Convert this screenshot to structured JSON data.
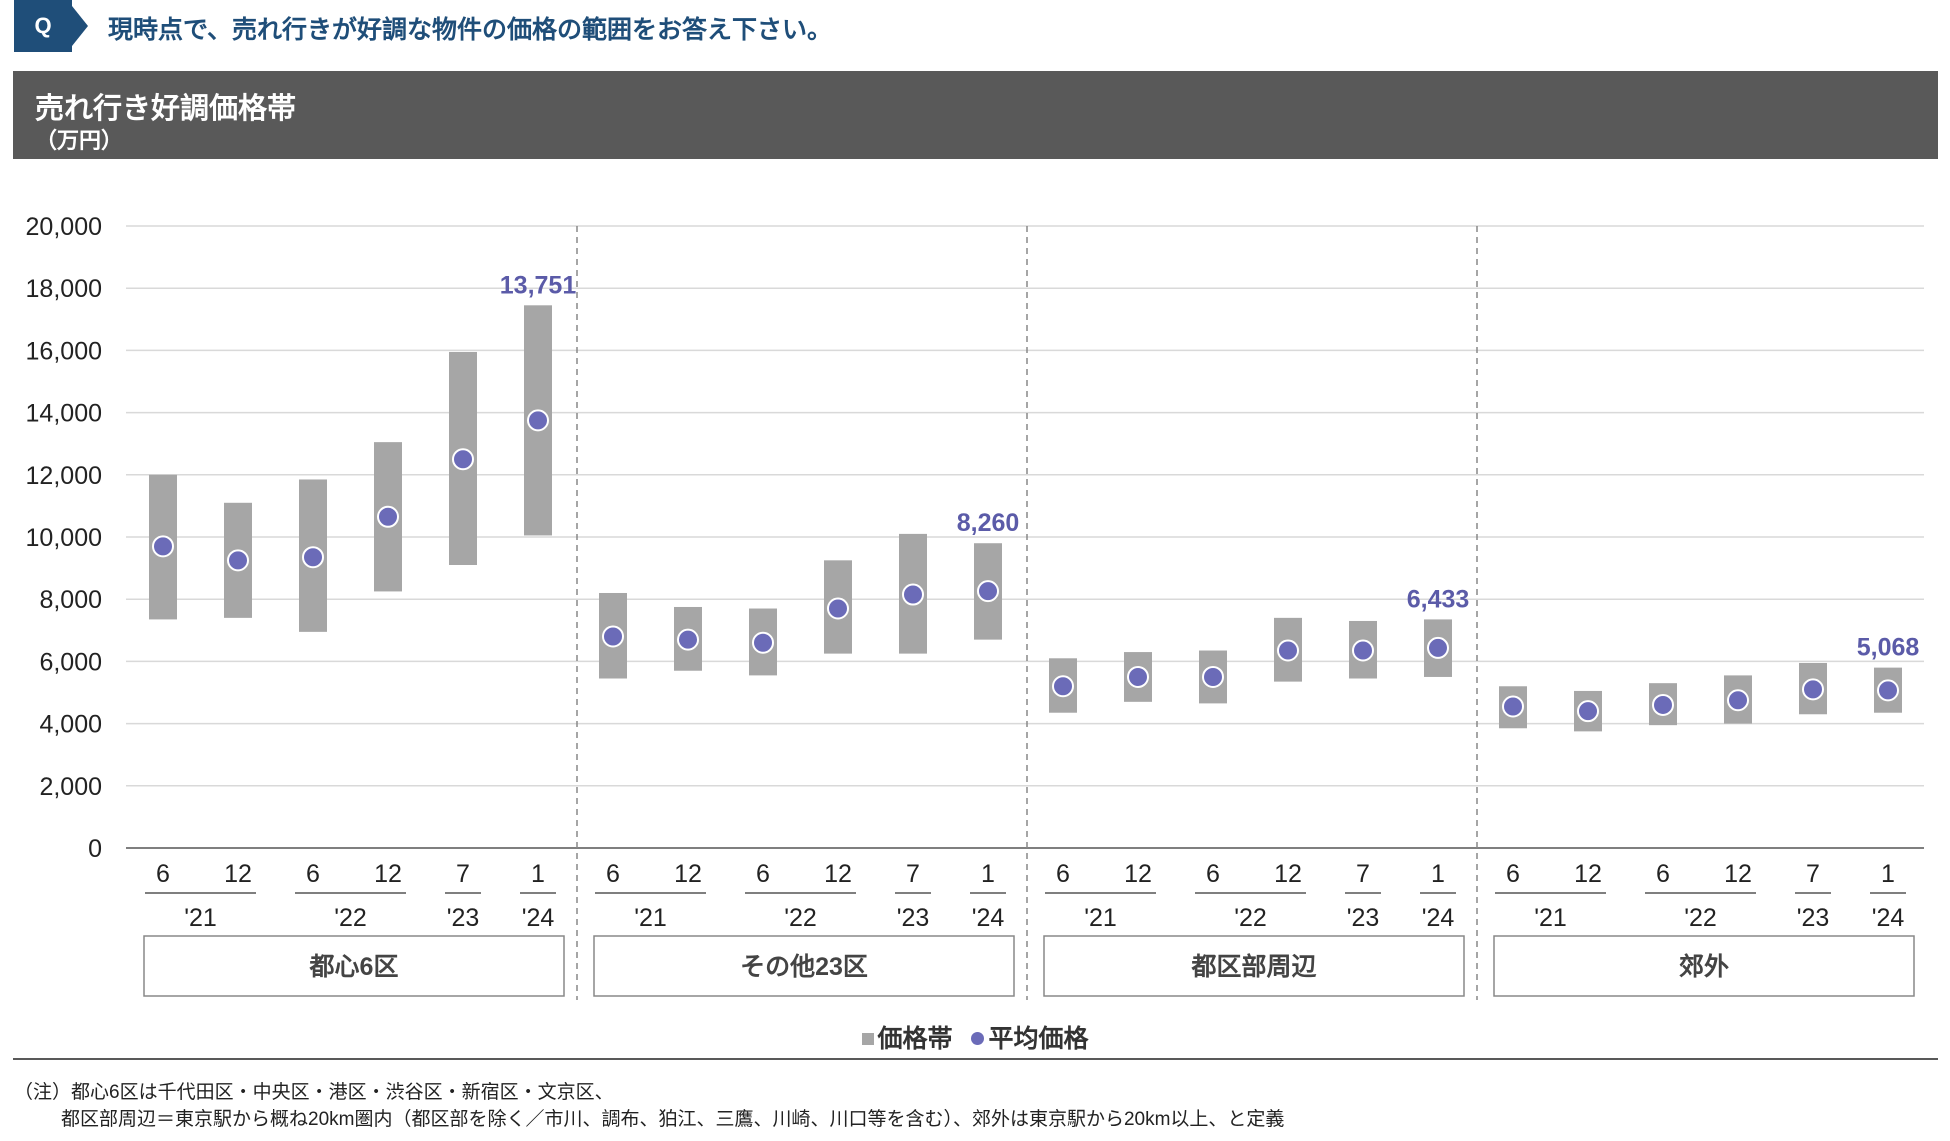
{
  "question": {
    "badge": "Q",
    "text": "現時点で、売れ行きが好調な物件の価格の範囲をお答え下さい。"
  },
  "header": {
    "title": "売れ行き好調価格帯",
    "unit": "（万円）"
  },
  "legend": {
    "range_label": "価格帯",
    "average_label": "平均価格"
  },
  "notes": {
    "line1": "（注）都心6区は千代田区・中央区・港区・渋谷区・新宿区・文京区、",
    "line2": "都区部周辺＝東京駅から概ね20km圏内（都区部を除く／市川、調布、狛江、三鷹、川崎、川口等を含む）、郊外は東京駅から20km以上、と定義"
  },
  "colors": {
    "bar": "#a6a6a6",
    "marker": "#6b6bb8",
    "value_label": "#5b5ba8",
    "gridline": "#d9d9d9",
    "header_bg": "#595959",
    "question": "#1f4e79"
  },
  "chart_data": {
    "type": "floating-bar-with-markers",
    "ylim": [
      0,
      20000
    ],
    "yticks": [
      0,
      2000,
      4000,
      6000,
      8000,
      10000,
      12000,
      14000,
      16000,
      18000,
      20000
    ],
    "ytick_labels": [
      "0",
      "2,000",
      "4,000",
      "6,000",
      "8,000",
      "10,000",
      "12,000",
      "14,000",
      "16,000",
      "18,000",
      "20,000"
    ],
    "grid": true,
    "legend_position": "bottom-center",
    "month_labels": [
      "6",
      "12",
      "6",
      "12",
      "7",
      "1"
    ],
    "year_groups": [
      {
        "label": "'21",
        "span": [
          0,
          1
        ]
      },
      {
        "label": "'22",
        "span": [
          2,
          3
        ]
      },
      {
        "label": "'23",
        "span": [
          4,
          4
        ]
      },
      {
        "label": "'24",
        "span": [
          5,
          5
        ]
      }
    ],
    "groups": [
      {
        "name": "都心6区",
        "low": [
          7350,
          7400,
          6950,
          8250,
          9100,
          10050
        ],
        "high": [
          12000,
          11100,
          11850,
          13050,
          15950,
          17450
        ],
        "avg": [
          9700,
          9250,
          9350,
          10650,
          12500,
          13751
        ],
        "last_label": "13,751"
      },
      {
        "name": "その他23区",
        "low": [
          5450,
          5700,
          5550,
          6250,
          6250,
          6700
        ],
        "high": [
          8200,
          7750,
          7700,
          9250,
          10100,
          9800
        ],
        "avg": [
          6800,
          6700,
          6600,
          7700,
          8150,
          8260
        ],
        "last_label": "8,260"
      },
      {
        "name": "都区部周辺",
        "low": [
          4350,
          4700,
          4650,
          5350,
          5450,
          5500
        ],
        "high": [
          6100,
          6300,
          6350,
          7400,
          7300,
          7350
        ],
        "avg": [
          5200,
          5500,
          5500,
          6350,
          6350,
          6433
        ],
        "last_label": "6,433"
      },
      {
        "name": "郊外",
        "low": [
          3850,
          3750,
          3950,
          4000,
          4300,
          4350
        ],
        "high": [
          5200,
          5050,
          5300,
          5550,
          5950,
          5800
        ],
        "avg": [
          4550,
          4400,
          4600,
          4750,
          5100,
          5068
        ],
        "last_label": "5,068"
      }
    ]
  }
}
